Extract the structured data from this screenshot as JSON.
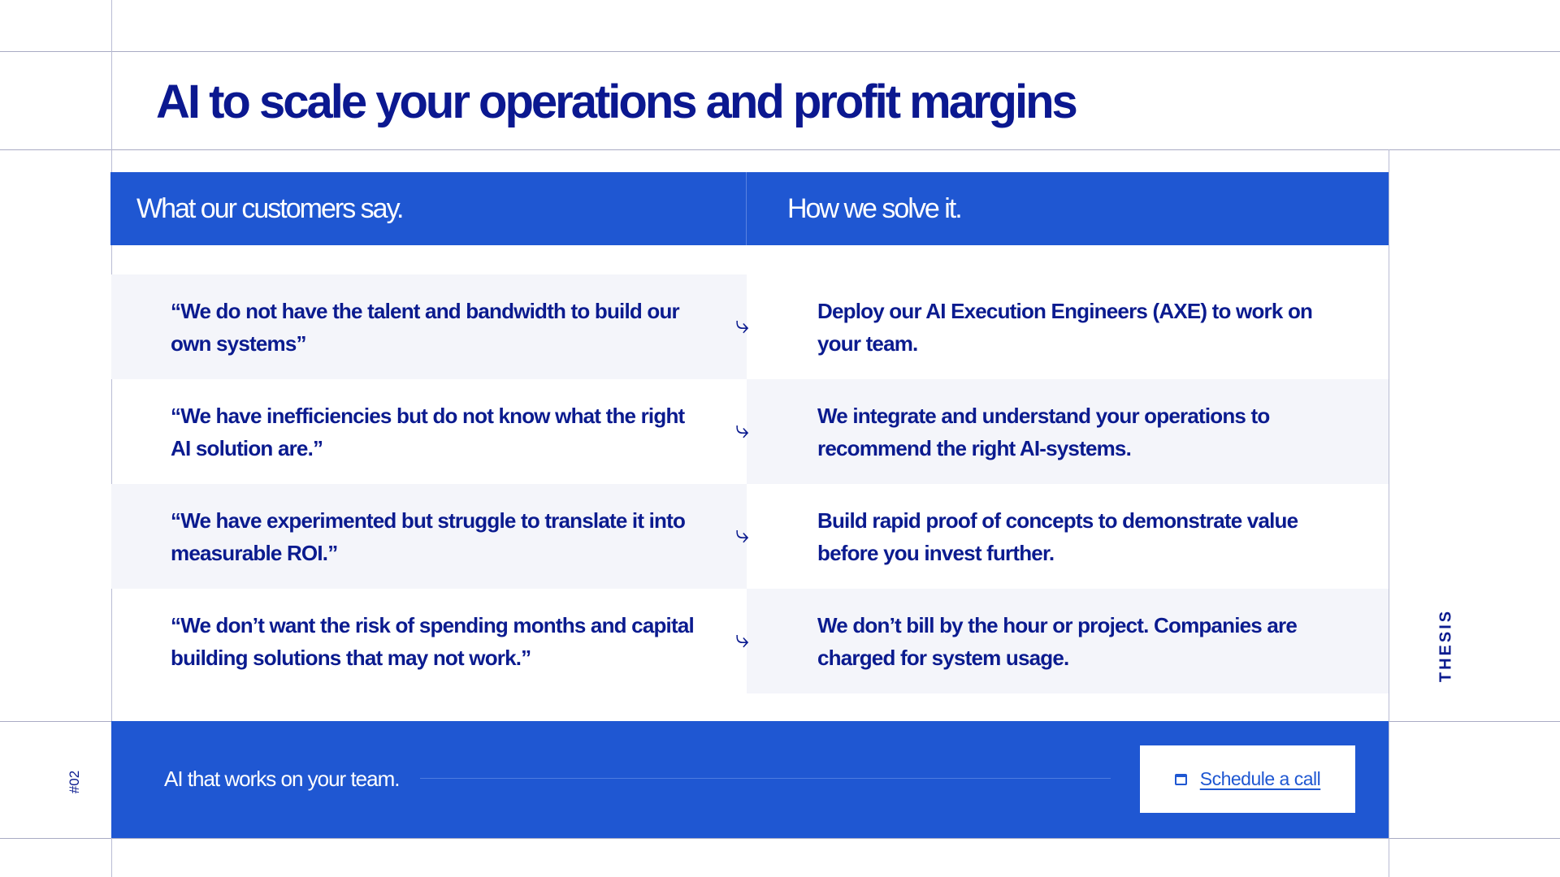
{
  "title": "AI to scale your operations and profit margins",
  "headers": {
    "left": "What our customers say.",
    "right": "How we solve it."
  },
  "rows": [
    {
      "problem": "“We do not have the talent and bandwidth to build our own systems”",
      "solution": "Deploy our AI Execution Engineers (AXE) to work on your team."
    },
    {
      "problem": "“We have inefficiencies but do not know what the right AI solution are.”",
      "solution": "We integrate and understand your operations to recommend the right AI-systems."
    },
    {
      "problem": "“We have experimented but struggle to translate it into measurable ROI.”",
      "solution": "Build rapid proof of concepts to demonstrate value before you invest further."
    },
    {
      "problem": "“We don’t want the risk of spending months and capital building solutions that may not work.”",
      "solution": "We don’t bill by the hour or project. Companies are charged for system usage."
    }
  ],
  "arrow_icon": "⤷",
  "footer": {
    "tagline": "AI that works on your team.",
    "cta_label": "Schedule a call",
    "cta_icon": "calendar-icon"
  },
  "side_label": "THESIS",
  "page_number": "#02",
  "colors": {
    "accent": "#1f57d2",
    "text": "#0b1b8f",
    "row_shade": "#f4f5fa"
  }
}
